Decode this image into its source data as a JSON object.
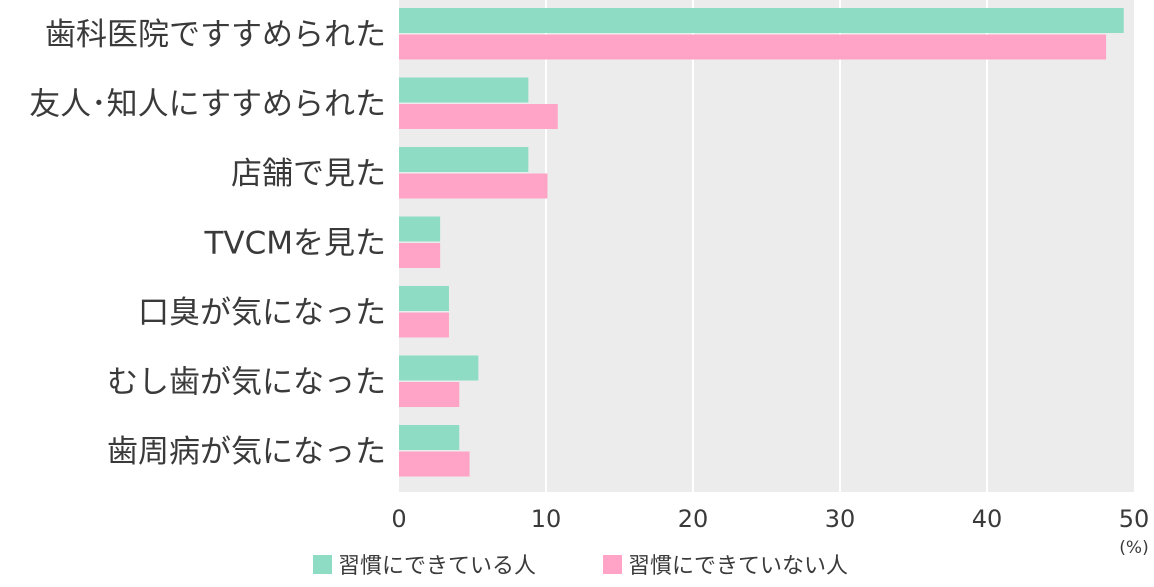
{
  "chart_data": {
    "type": "bar",
    "orientation": "horizontal",
    "categories": [
      "歯科医院ですすめられた",
      "友人･知人にすすめられた",
      "店舗で見た",
      "TVCMを見た",
      "口臭が気になった",
      "むし歯が気になった",
      "歯周病が気になった"
    ],
    "series": [
      {
        "name": "習慣にできている人",
        "color": "#8edcc4",
        "values": [
          49.3,
          8.8,
          8.8,
          2.8,
          3.4,
          5.4,
          4.1
        ]
      },
      {
        "name": "習慣にできていない人",
        "color": "#ffa4c6",
        "values": [
          48.1,
          10.8,
          10.1,
          2.8,
          3.4,
          4.1,
          4.8
        ]
      }
    ],
    "xlim": [
      0,
      50
    ],
    "xticks": [
      "0",
      "10",
      "20",
      "30",
      "40",
      "50"
    ],
    "unit": "(%)",
    "grid": true,
    "plot_background": "#ececec",
    "gridline_color": "#ffffff",
    "legend_position": "bottom-center"
  }
}
